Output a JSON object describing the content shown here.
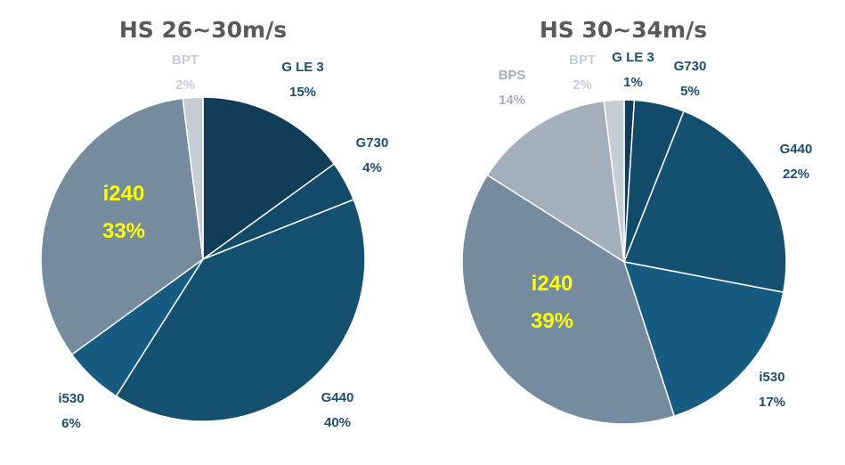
{
  "chart_data": [
    {
      "type": "pie",
      "title": "HS 26~30m/s",
      "slices": [
        {
          "name": "G LE 3",
          "value": 15,
          "label": "15%",
          "color": "#123d58"
        },
        {
          "name": "G730",
          "value": 4,
          "label": "4%",
          "color": "#124a69"
        },
        {
          "name": "G440",
          "value": 40,
          "label": "40%",
          "color": "#14506f"
        },
        {
          "name": "i530",
          "value": 6,
          "label": "6%",
          "color": "#165c80"
        },
        {
          "name": "i240",
          "value": 33,
          "label": "33%",
          "color": "#758c9f"
        },
        {
          "name": "BPT",
          "value": 2,
          "label": "2%",
          "color": "#c5cdd5"
        }
      ]
    },
    {
      "type": "pie",
      "title": "HS 30~34m/s",
      "slices": [
        {
          "name": "G LE 3",
          "value": 1,
          "label": "1%",
          "color": "#123d58"
        },
        {
          "name": "G730",
          "value": 5,
          "label": "5%",
          "color": "#124a69"
        },
        {
          "name": "G440",
          "value": 22,
          "label": "22%",
          "color": "#14506f"
        },
        {
          "name": "i530",
          "value": 17,
          "label": "17%",
          "color": "#165c80"
        },
        {
          "name": "i240",
          "value": 39,
          "label": "39%",
          "color": "#758c9f"
        },
        {
          "name": "BPS",
          "value": 14,
          "label": "14%",
          "color": "#a3b0bc"
        },
        {
          "name": "BPT",
          "value": 2,
          "label": "2%",
          "color": "#c5cdd5"
        }
      ]
    }
  ],
  "label_colors": {
    "dark": "#1f4e6e",
    "highlight": "#ffff00",
    "light_bps": "#a3b0bc",
    "light_bpt": "#c5cdd5"
  }
}
